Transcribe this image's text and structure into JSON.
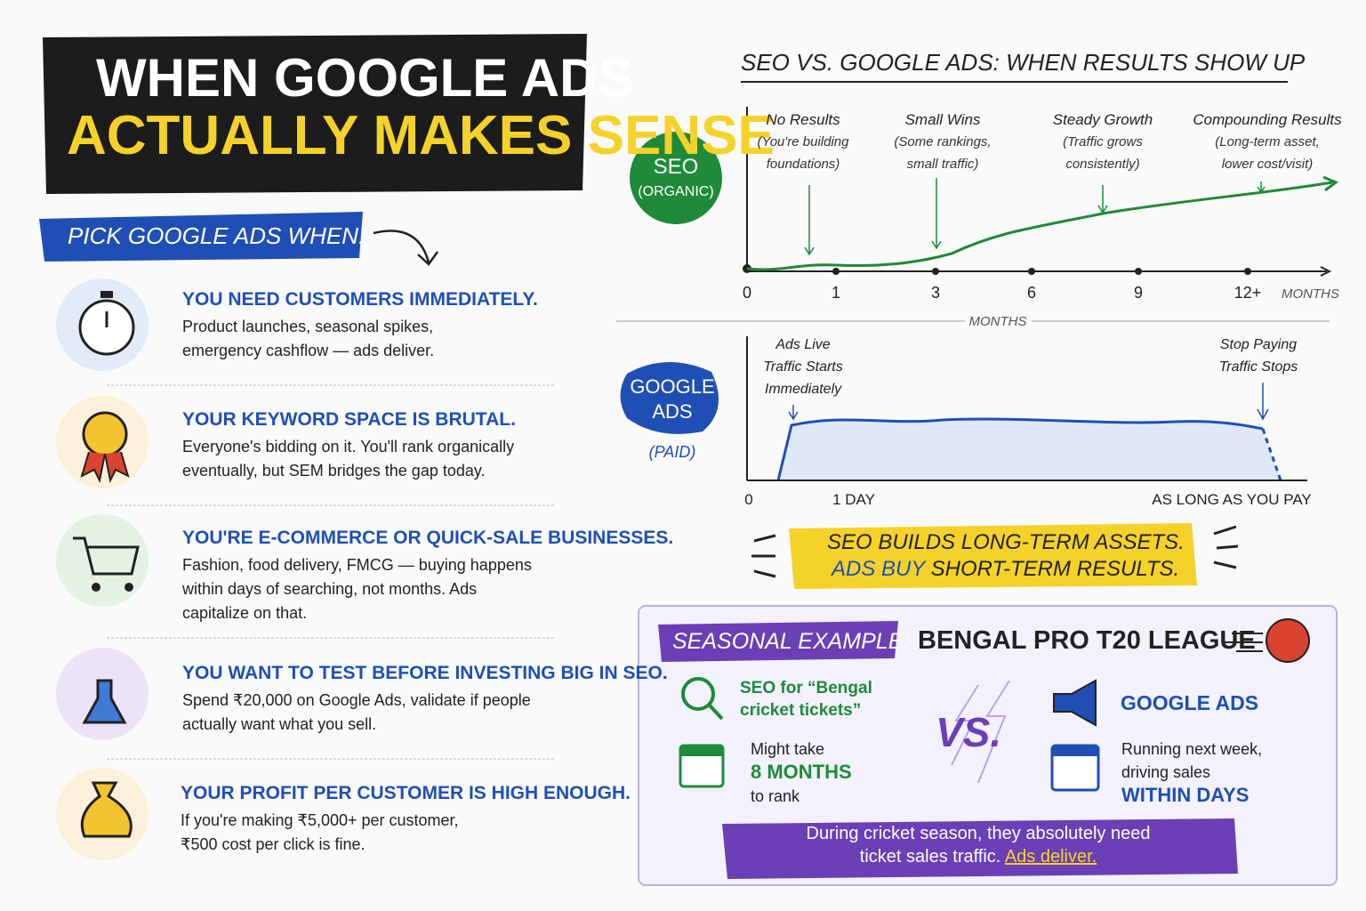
{
  "header": {
    "title_line1": "WHEN GOOGLE ADS",
    "title_line2": "ACTUALLY MAKES SENSE"
  },
  "pick": {
    "label": "PICK GOOGLE ADS WHEN:",
    "items": [
      {
        "title": "YOU NEED CUSTOMERS IMMEDIATELY.",
        "lines": [
          "Product launches, seasonal spikes,",
          "emergency cashflow — ads deliver."
        ]
      },
      {
        "title": "YOUR KEYWORD SPACE IS BRUTAL.",
        "lines": [
          "Everyone's bidding on it. You'll rank organically",
          "eventually, but SEM bridges the gap today."
        ]
      },
      {
        "title": "YOU'RE E-COMMERCE OR QUICK-SALE BUSINESSES.",
        "lines": [
          "Fashion, food delivery, FMCG — buying happens",
          "within days of searching, not months. Ads",
          "capitalize on that."
        ]
      },
      {
        "title": "YOU WANT TO TEST BEFORE INVESTING BIG IN SEO.",
        "lines": [
          "Spend ₹20,000 on Google Ads, validate if people",
          "actually want what you sell."
        ]
      },
      {
        "title": "YOUR PROFIT PER CUSTOMER IS HIGH ENOUGH.",
        "lines": [
          "If you're making ₹5,000+ per customer,",
          "₹500 cost per click is fine."
        ]
      }
    ]
  },
  "timeline": {
    "title": "SEO VS. GOOGLE ADS: WHEN RESULTS SHOW UP",
    "seo": {
      "badge": "SEO",
      "badge_sub": "(ORGANIC)",
      "stages": [
        {
          "title": "No Results",
          "lines": [
            "(You're building",
            "foundations)"
          ]
        },
        {
          "title": "Small Wins",
          "lines": [
            "(Some rankings,",
            "small traffic)"
          ]
        },
        {
          "title": "Steady Growth",
          "lines": [
            "(Traffic grows",
            "consistently)"
          ]
        },
        {
          "title": "Compounding Results",
          "lines": [
            "(Long-term asset,",
            "lower cost/visit)"
          ]
        }
      ],
      "ticks": [
        "0",
        "1",
        "3",
        "6",
        "9",
        "12+"
      ],
      "unit": "MONTHS"
    },
    "divider_label": "MONTHS",
    "ads": {
      "badge_lines": [
        "GOOGLE",
        "ADS"
      ],
      "badge_sub": "(PAID)",
      "start": [
        "Ads Live",
        "Traffic Starts",
        "Immediately"
      ],
      "stop": [
        "Stop Paying",
        "Traffic Stops"
      ],
      "ticks": [
        "0",
        "1 DAY",
        "AS LONG AS YOU PAY"
      ]
    }
  },
  "callout": {
    "line1": "SEO BUILDS LONG-TERM ASSETS.",
    "line2_highlight": "ADS BUY",
    "line2_rest": "SHORT-TERM RESULTS."
  },
  "example": {
    "label": "SEASONAL EXAMPLE:",
    "title": "BENGAL PRO T20 LEAGUE",
    "seo": {
      "heading": [
        "SEO for “Bengal",
        "cricket tickets”"
      ],
      "pre": "Might take",
      "emph": "8 MONTHS",
      "post": "to rank"
    },
    "vs": "VS.",
    "ads": {
      "heading": "GOOGLE ADS",
      "pre": [
        "Running next week,",
        "driving sales"
      ],
      "emph": "WITHIN DAYS"
    },
    "footer_line1": "During cricket season, they absolutely need",
    "footer_line2": "ticket sales traffic.",
    "footer_highlight": "Ads deliver."
  }
}
